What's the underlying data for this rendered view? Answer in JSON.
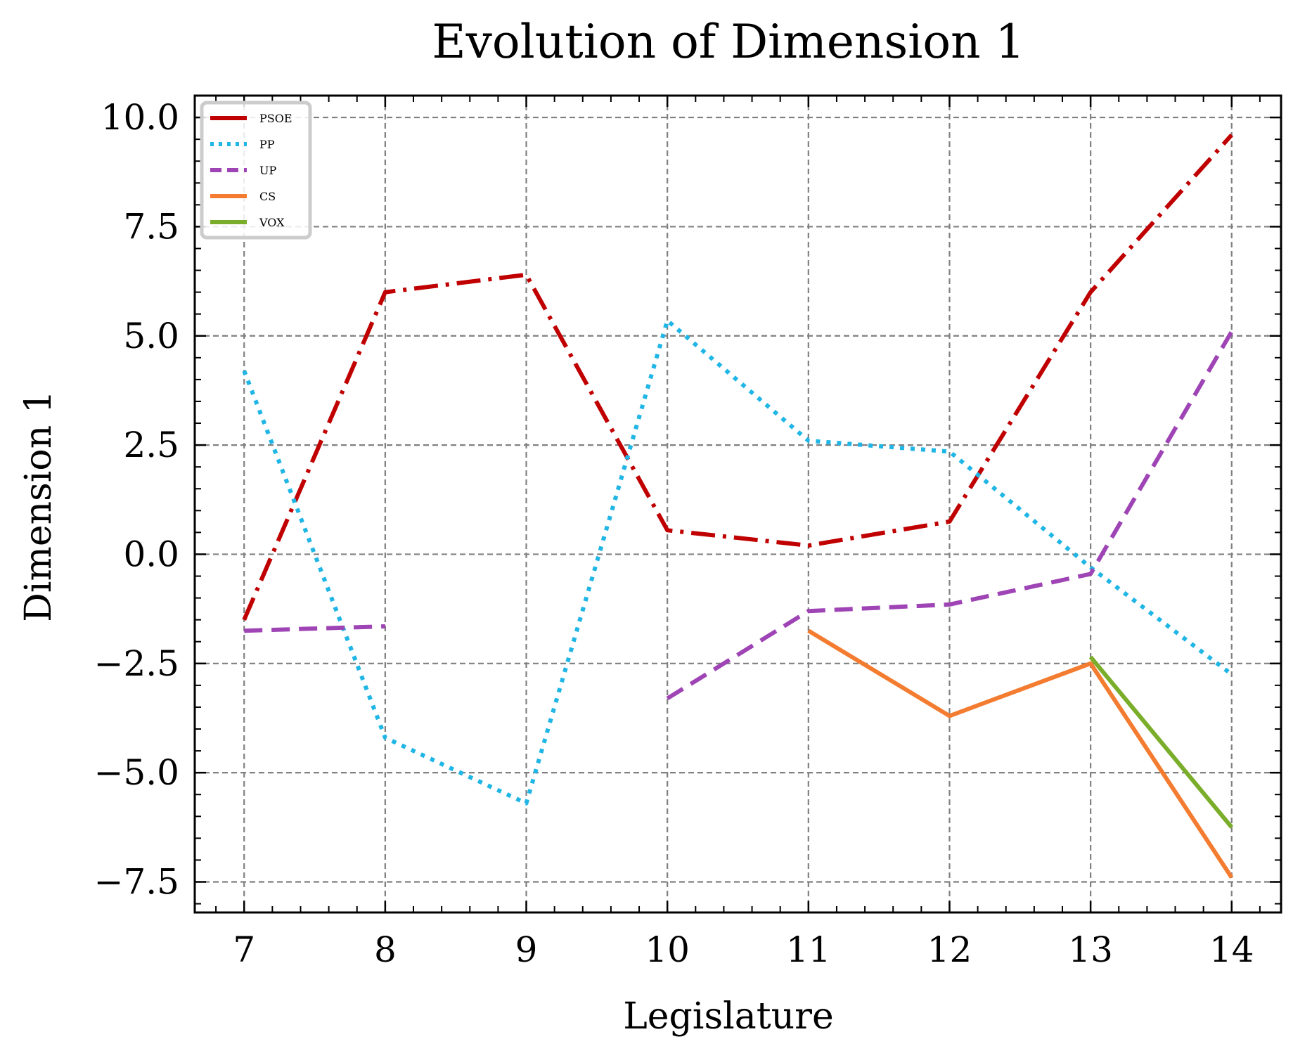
{
  "chart_data": {
    "type": "line",
    "title": "Evolution of Dimension 1",
    "xlabel": "Legislature",
    "ylabel": "Dimension 1",
    "xlim": [
      6.65,
      14.35
    ],
    "ylim": [
      -8.2,
      10.5
    ],
    "xticks": [
      7,
      8,
      9,
      10,
      11,
      12,
      13,
      14
    ],
    "xtick_labels": [
      "7",
      "8",
      "9",
      "10",
      "11",
      "12",
      "13",
      "14"
    ],
    "yticks": [
      -7.5,
      -5.0,
      -2.5,
      0.0,
      2.5,
      5.0,
      7.5,
      10.0
    ],
    "ytick_labels": [
      "−7.5",
      "−5.0",
      "−2.5",
      "0.0",
      "2.5",
      "5.0",
      "7.5",
      "10.0"
    ],
    "grid": true,
    "legend_position": "top-left",
    "series": [
      {
        "name": "PSOE",
        "color": "#c00000",
        "style": "dashdot",
        "points": [
          [
            7,
            -1.5
          ],
          [
            8,
            6.0
          ],
          [
            9,
            6.4
          ],
          [
            10,
            0.55
          ],
          [
            11,
            0.2
          ],
          [
            12,
            0.75
          ],
          [
            13,
            6.0
          ],
          [
            14,
            9.6
          ]
        ]
      },
      {
        "name": "PP",
        "color": "#1fb6e6",
        "style": "dotted",
        "points": [
          [
            7,
            4.2
          ],
          [
            8,
            -4.2
          ],
          [
            9,
            -5.7
          ],
          [
            10,
            5.35
          ],
          [
            11,
            2.6
          ],
          [
            12,
            2.35
          ],
          [
            13,
            -0.3
          ],
          [
            14,
            -2.75
          ]
        ]
      },
      {
        "name": "UP",
        "color": "#9e44b5",
        "style": "dashed",
        "points": [
          [
            7,
            -1.75
          ],
          [
            8,
            -1.65
          ]
        ]
      },
      {
        "name": "",
        "color": "#9e44b5",
        "style": "dashed",
        "points": [
          [
            10,
            -3.3
          ],
          [
            11,
            -1.3
          ],
          [
            12,
            -1.15
          ],
          [
            13,
            -0.45
          ],
          [
            14,
            5.1
          ]
        ]
      },
      {
        "name": "CS",
        "color": "#f47c30",
        "style": "solid",
        "points": [
          [
            11,
            -1.75
          ],
          [
            12,
            -3.7
          ],
          [
            13,
            -2.5
          ],
          [
            14,
            -7.4
          ]
        ]
      },
      {
        "name": "VOX",
        "color": "#7aad2a",
        "style": "solid",
        "points": [
          [
            13,
            -2.35
          ],
          [
            14,
            -6.25
          ]
        ]
      }
    ]
  }
}
